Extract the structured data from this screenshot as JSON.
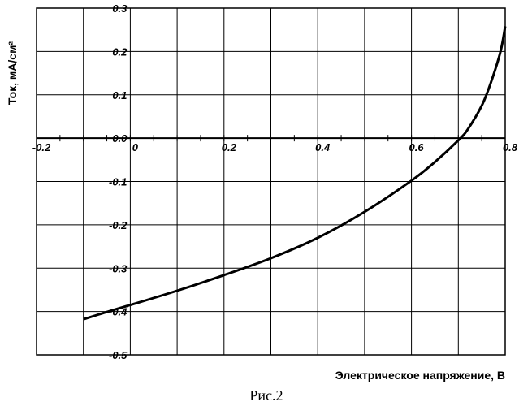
{
  "chart_data": {
    "type": "line",
    "xlabel": "Электрическое напряжение, В",
    "ylabel": "Ток, мА/см²",
    "xlim": [
      -0.2,
      0.8
    ],
    "ylim": [
      -0.5,
      0.3
    ],
    "x_ticks": [
      "-0.2",
      "0",
      "0.2",
      "0.4",
      "0.6",
      "0.8"
    ],
    "y_ticks": [
      "0.3",
      "0.2",
      "0.1",
      "0.0",
      "-0.1",
      "-0.2",
      "-0.3",
      "-0.4",
      "-0.5"
    ],
    "x_tick_values": [
      -0.2,
      0,
      0.2,
      0.4,
      0.6,
      0.8
    ],
    "y_tick_values": [
      0.3,
      0.2,
      0.1,
      0.0,
      -0.1,
      -0.2,
      -0.3,
      -0.4,
      -0.5
    ],
    "grid": true,
    "series": [
      {
        "x": [
          -0.1,
          -0.05,
          0.0,
          0.1,
          0.2,
          0.3,
          0.4,
          0.5,
          0.6,
          0.65,
          0.7,
          0.72,
          0.75,
          0.77,
          0.79,
          0.8
        ],
        "y": [
          -0.418,
          -0.401,
          -0.385,
          -0.352,
          -0.316,
          -0.277,
          -0.23,
          -0.17,
          -0.098,
          -0.055,
          -0.005,
          0.02,
          0.075,
          0.13,
          0.2,
          0.258
        ]
      }
    ]
  },
  "caption": "Рис.2"
}
